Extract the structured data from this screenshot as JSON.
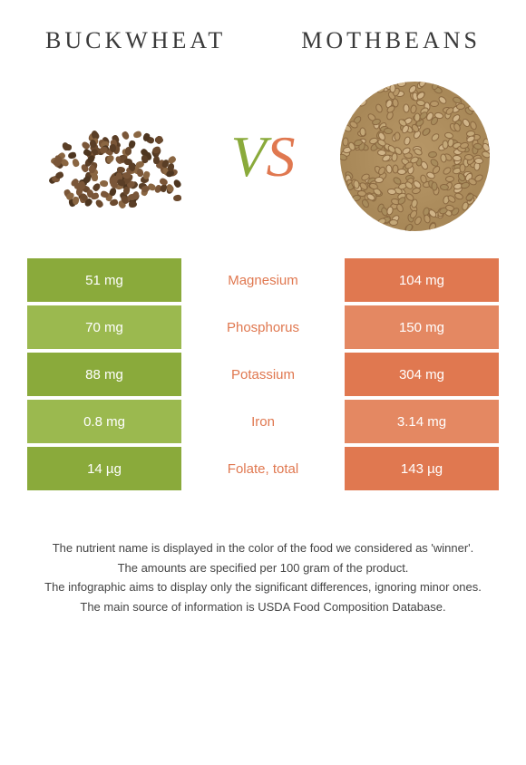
{
  "header": {
    "left_title": "BUCKWHEAT",
    "right_title": "MOTHBEANS"
  },
  "vs": {
    "v": "V",
    "s": "S"
  },
  "colors": {
    "left": "#8aaa3b",
    "right": "#e07850",
    "left_light": "#9bb94f",
    "right_light": "#e48862"
  },
  "table": {
    "rows": [
      {
        "left": "51 mg",
        "mid": "Magnesium",
        "right": "104 mg",
        "winner": "right"
      },
      {
        "left": "70 mg",
        "mid": "Phosphorus",
        "right": "150 mg",
        "winner": "right"
      },
      {
        "left": "88 mg",
        "mid": "Potassium",
        "right": "304 mg",
        "winner": "right"
      },
      {
        "left": "0.8 mg",
        "mid": "Iron",
        "right": "3.14 mg",
        "winner": "right"
      },
      {
        "left": "14 µg",
        "mid": "Folate, total",
        "right": "143 µg",
        "winner": "right"
      }
    ]
  },
  "footer": {
    "line1": "The nutrient name is displayed in the color of the food we considered as 'winner'.",
    "line2": "The amounts are specified per 100 gram of the product.",
    "line3": "The infographic aims to display only the significant differences, ignoring minor ones.",
    "line4": "The main source of information is USDA Food Composition Database."
  }
}
